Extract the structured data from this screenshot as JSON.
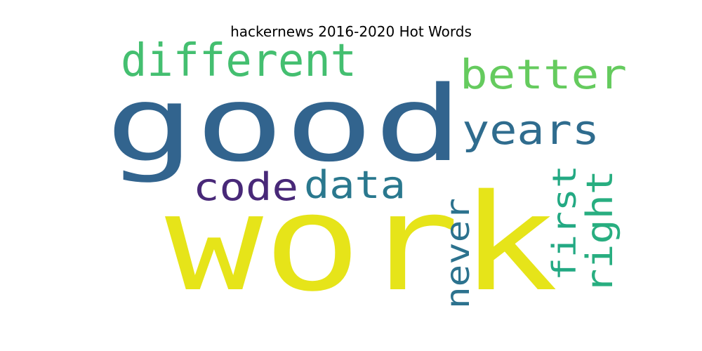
{
  "chart_data": {
    "type": "wordcloud",
    "title": "hackernews 2016-2020 Hot Words",
    "words": [
      {
        "text": "good",
        "color": "#32648e"
      },
      {
        "text": "work",
        "color": "#e6e419"
      },
      {
        "text": "different",
        "color": "#44bf70"
      },
      {
        "text": "better",
        "color": "#65cb5e"
      },
      {
        "text": "years",
        "color": "#2f6c8e"
      },
      {
        "text": "code",
        "color": "#482878"
      },
      {
        "text": "data",
        "color": "#2a788e"
      },
      {
        "text": "never",
        "color": "#2c728e"
      },
      {
        "text": "first",
        "color": "#23a983"
      },
      {
        "text": "right",
        "color": "#28ae80"
      }
    ]
  }
}
